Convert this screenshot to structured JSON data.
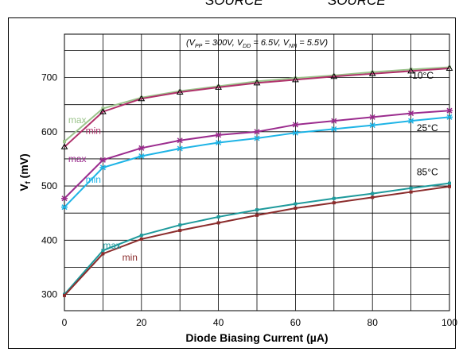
{
  "header": {
    "left_label": "SOURCE",
    "right_label": "SOURCE"
  },
  "chart_data": {
    "type": "line",
    "condition_text": "(V_PP = 300V, V_DD = 6.5V, V_NN = 5.5V)",
    "condition_parts": [
      "(V",
      "PP",
      " = 300V, V",
      "DD",
      " = 6.5V, V",
      "NN",
      " = 5.5V)"
    ],
    "xlabel": "Diode Biasing Current (µA)",
    "ylabel_main": "V",
    "ylabel_sub": "f",
    "ylabel_unit": " (mV)",
    "xlim": [
      0,
      100
    ],
    "ylim": [
      270,
      780
    ],
    "xticks": [
      0,
      20,
      40,
      60,
      80,
      100
    ],
    "yticks": [
      300,
      400,
      500,
      600,
      700
    ],
    "grid": true,
    "x": [
      0,
      10,
      20,
      30,
      40,
      50,
      60,
      70,
      80,
      90,
      100
    ],
    "series": [
      {
        "name": "max",
        "group": "-10°C",
        "color": "#9cc48c",
        "marker": "none",
        "values": [
          582,
          643,
          663,
          675,
          684,
          693,
          699,
          704,
          710,
          715,
          719
        ]
      },
      {
        "name": "min",
        "group": "-10°C",
        "color": "#b0306a",
        "marker": "triangle",
        "values": [
          572,
          637,
          661,
          673,
          682,
          690,
          696,
          702,
          707,
          712,
          717
        ]
      },
      {
        "name": "max",
        "group": "25°C",
        "color": "#9b2c8e",
        "marker": "star",
        "values": [
          477,
          548,
          570,
          584,
          594,
          600,
          613,
          620,
          627,
          634,
          639
        ]
      },
      {
        "name": "min",
        "group": "25°C",
        "color": "#1eb4e6",
        "marker": "star",
        "values": [
          461,
          534,
          555,
          569,
          580,
          588,
          598,
          605,
          612,
          620,
          627
        ]
      },
      {
        "name": "max",
        "group": "85°C",
        "color": "#1e9a9c",
        "marker": "none",
        "values": [
          300,
          381,
          409,
          428,
          443,
          456,
          467,
          477,
          486,
          496,
          505
        ]
      },
      {
        "name": "min",
        "group": "85°C",
        "color": "#8b2c2c",
        "marker": "none",
        "values": [
          298,
          375,
          402,
          418,
          432,
          446,
          459,
          469,
          479,
          489,
          499
        ]
      }
    ],
    "annotations": [
      {
        "text": "max",
        "x": 1,
        "y": 616,
        "color": "#9cc48c"
      },
      {
        "text": "min",
        "x": 5.5,
        "y": 596,
        "color": "#b0306a"
      },
      {
        "text": "max",
        "x": 1,
        "y": 544,
        "color": "#9b2c8e"
      },
      {
        "text": "min",
        "x": 5.5,
        "y": 506,
        "color": "#1eb4e6"
      },
      {
        "text": "max",
        "x": 10,
        "y": 384,
        "color": "#1e9a9c"
      },
      {
        "text": "min",
        "x": 15,
        "y": 362,
        "color": "#8b2c2c"
      },
      {
        "text": "-10°C",
        "x": 89.5,
        "y": 698,
        "color": "#000000"
      },
      {
        "text": "25°C",
        "x": 91.5,
        "y": 601,
        "color": "#000000"
      },
      {
        "text": "85°C",
        "x": 91.5,
        "y": 520,
        "color": "#000000"
      }
    ]
  }
}
